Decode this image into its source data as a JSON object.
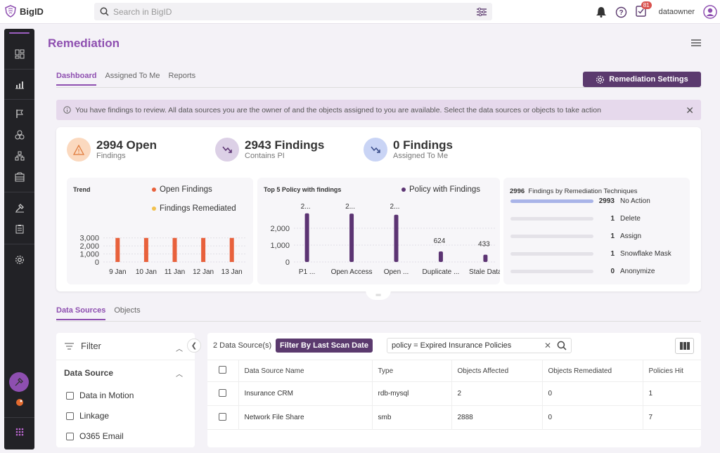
{
  "app": {
    "name": "BigID"
  },
  "search": {
    "placeholder": "Search in BigID"
  },
  "header": {
    "notification_count": "81",
    "username": "dataowner"
  },
  "page": {
    "title": "Remediation"
  },
  "tabs": [
    {
      "label": "Dashboard",
      "active": true
    },
    {
      "label": "Assigned To Me",
      "active": false
    },
    {
      "label": "Reports",
      "active": false
    }
  ],
  "settings_button": {
    "label": "Remediation Settings"
  },
  "info_bar": {
    "text": "You have findings to review. All data sources you are the owner of and the objects assigned to you are available. Select the data sources or objects to take action"
  },
  "stats": [
    {
      "value": "2994 Open",
      "sub": "Findings",
      "icon": "warning-icon",
      "color": "#fbd9bf"
    },
    {
      "value": "2943 Findings",
      "sub": "Contains PI",
      "icon": "trend-down-icon",
      "color": "#dcd0e6"
    },
    {
      "value": "0 Findings",
      "sub": "Assigned To Me",
      "icon": "trend-up-icon",
      "color": "#c9d4f5"
    }
  ],
  "trend": {
    "title": "Trend",
    "legend": [
      {
        "label": "Open Findings",
        "color": "#e8613c"
      },
      {
        "label": "Findings Remediated",
        "color": "#f2c14e"
      }
    ],
    "y_ticks": [
      "3,000",
      "2,000",
      "1,000",
      "0"
    ]
  },
  "policies": {
    "title": "Top 5 Policy with findings",
    "legend": [
      {
        "label": "Policy with Findings",
        "color": "#5c3473"
      }
    ],
    "y_ticks": [
      "2,000",
      "1,000",
      "0"
    ]
  },
  "remediation": {
    "total": "2996",
    "title": "Findings by Remediation Techniques",
    "rows": [
      {
        "count": "2993",
        "label": "No Action",
        "fraction": 1.0
      },
      {
        "count": "1",
        "label": "Delete",
        "fraction": 0.0
      },
      {
        "count": "1",
        "label": "Assign",
        "fraction": 0.0
      },
      {
        "count": "1",
        "label": "Snowflake Mask",
        "fraction": 0.0
      },
      {
        "count": "0",
        "label": "Anonymize",
        "fraction": 0.0
      }
    ]
  },
  "chart_data": [
    {
      "type": "bar",
      "title": "Trend",
      "categories": [
        "9 Jan",
        "10 Jan",
        "11 Jan",
        "12 Jan",
        "13 Jan"
      ],
      "series": [
        {
          "name": "Open Findings",
          "values": [
            2994,
            2994,
            2994,
            2994,
            2994
          ]
        },
        {
          "name": "Findings Remediated",
          "values": [
            0,
            0,
            0,
            0,
            0
          ]
        }
      ],
      "ylim": [
        0,
        3500
      ],
      "legend": "top-right"
    },
    {
      "type": "bar",
      "title": "Top 5 Policy with findings",
      "categories": [
        "P1 ...",
        "Open Access",
        "Open ...",
        "Duplicate ...",
        "Stale Data"
      ],
      "data_labels": [
        "2...",
        "2...",
        "2...",
        "624",
        "433"
      ],
      "series": [
        {
          "name": "Policy with Findings",
          "values": [
            2888,
            2870,
            2800,
            624,
            433
          ]
        }
      ],
      "ylim": [
        0,
        3000
      ],
      "legend": "top-right"
    }
  ],
  "section_tabs": [
    {
      "label": "Data Sources",
      "active": true
    },
    {
      "label": "Objects",
      "active": false
    }
  ],
  "filter": {
    "title": "Filter",
    "group": "Data Source",
    "options": [
      "Data in Motion",
      "Linkage",
      "O365 Email"
    ]
  },
  "table": {
    "count_text": "2 Data Source(s)",
    "scan_button": "Filter By Last Scan Date",
    "query": "policy = Expired Insurance Policies",
    "columns": [
      "Data Source Name",
      "Type",
      "Objects Affected",
      "Objects Remediated",
      "Policies Hit"
    ],
    "rows": [
      [
        "Insurance CRM",
        "rdb-mysql",
        "2",
        "0",
        "1"
      ],
      [
        "Network File Share",
        "smb",
        "2888",
        "0",
        "7"
      ]
    ]
  }
}
